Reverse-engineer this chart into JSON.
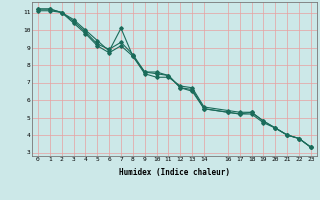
{
  "xlabel": "Humidex (Indice chaleur)",
  "bg_color": "#cce8e8",
  "grid_color": "#e8a0a0",
  "line_color": "#1a6b5a",
  "xlim": [
    -0.5,
    23.5
  ],
  "ylim": [
    2.8,
    11.6
  ],
  "yticks": [
    3,
    4,
    5,
    6,
    7,
    8,
    9,
    10,
    11
  ],
  "xticks": [
    0,
    1,
    2,
    3,
    4,
    5,
    6,
    7,
    8,
    9,
    10,
    11,
    12,
    13,
    14,
    16,
    17,
    18,
    19,
    20,
    21,
    22,
    23
  ],
  "line1_x": [
    0,
    1,
    2,
    3,
    4,
    5,
    6,
    7,
    8,
    9,
    10,
    11,
    12,
    13,
    14,
    16,
    17,
    18,
    19,
    20,
    21,
    22,
    23
  ],
  "line1_y": [
    11.2,
    11.2,
    11.0,
    10.6,
    10.0,
    9.4,
    8.8,
    10.1,
    8.5,
    7.5,
    7.3,
    7.3,
    6.8,
    6.7,
    5.6,
    5.4,
    5.3,
    5.3,
    4.8,
    4.4,
    4.0,
    3.8,
    3.3
  ],
  "line2_x": [
    0,
    1,
    2,
    3,
    4,
    5,
    6,
    7,
    8,
    9,
    10,
    11,
    12,
    13,
    14,
    16,
    17,
    18,
    19,
    20,
    21,
    22,
    23
  ],
  "line2_y": [
    11.2,
    11.2,
    11.0,
    10.5,
    9.9,
    9.2,
    8.9,
    9.3,
    8.6,
    7.6,
    7.5,
    7.4,
    6.7,
    6.6,
    5.5,
    5.3,
    5.2,
    5.3,
    4.8,
    4.4,
    4.0,
    3.8,
    3.3
  ],
  "line3_x": [
    0,
    1,
    2,
    3,
    4,
    5,
    6,
    7,
    8,
    9,
    10,
    11,
    12,
    13,
    14,
    16,
    17,
    18,
    19,
    20,
    21,
    22,
    23
  ],
  "line3_y": [
    11.1,
    11.1,
    11.0,
    10.4,
    9.8,
    9.1,
    8.7,
    9.1,
    8.5,
    7.6,
    7.6,
    7.4,
    6.7,
    6.5,
    5.5,
    5.3,
    5.2,
    5.2,
    4.7,
    4.4,
    4.0,
    3.8,
    3.3
  ]
}
